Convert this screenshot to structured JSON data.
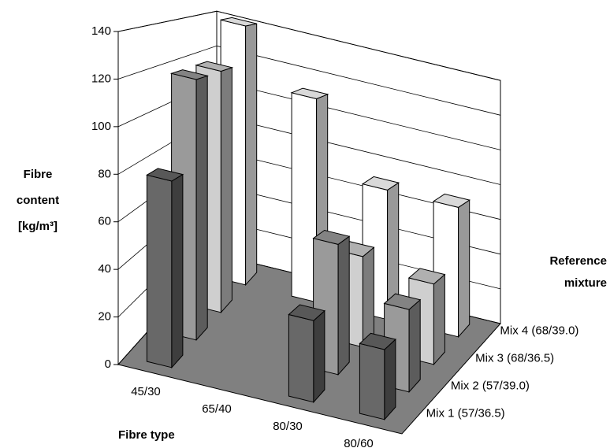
{
  "chart_data": {
    "type": "bar3d",
    "y_label": [
      "Fibre",
      "content",
      "[kg/m³]"
    ],
    "x_label": "Fibre type",
    "z_label": [
      "Reference",
      "mixture"
    ],
    "categories": [
      "45/30",
      "65/40",
      "80/30",
      "80/60"
    ],
    "series": [
      {
        "name": "Mix 1 (57/36.5)",
        "color": "#686868",
        "values": [
          80,
          null,
          35,
          30
        ]
      },
      {
        "name": "Mix 2 (57/39.0)",
        "color": "#9a9a9a",
        "values": [
          120,
          null,
          60,
          38
        ]
      },
      {
        "name": "Mix 3 (68/36.5)",
        "color": "#cfcfcf",
        "values": [
          120,
          null,
          45,
          40
        ]
      },
      {
        "name": "Mix 4 (68/39.0)",
        "color": "#ffffff",
        "values": [
          140,
          110,
          70,
          70
        ]
      }
    ],
    "ylim": [
      0,
      140
    ],
    "yticks": [
      0,
      20,
      40,
      60,
      80,
      100,
      120,
      140
    ],
    "grid": true
  }
}
